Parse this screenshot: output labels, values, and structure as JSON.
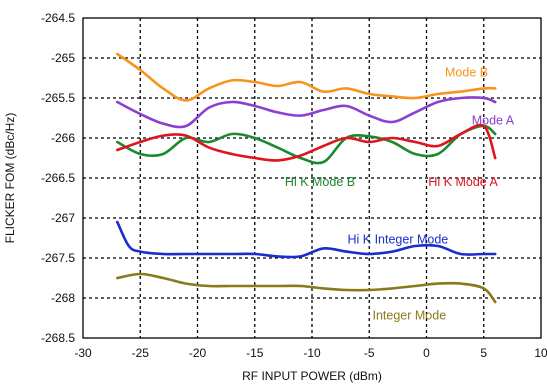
{
  "chart_data": {
    "type": "line",
    "title": "",
    "xlabel": "RF INPUT POWER (dBm)",
    "ylabel": "FLICKER FOM (dBc/Hz)",
    "xlim": [
      -30,
      10
    ],
    "ylim": [
      -268.5,
      -264.5
    ],
    "xticks": [
      -30,
      -25,
      -20,
      -15,
      -10,
      -5,
      0,
      5,
      10
    ],
    "yticks": [
      -264.5,
      -265,
      -265.5,
      -266,
      -266.5,
      -267,
      -267.5,
      -268,
      -268.5
    ],
    "grid": "dashed",
    "series": [
      {
        "name": "Mode B",
        "color": "#f7941d",
        "label_at": [
          3.5,
          -265.18
        ],
        "x": [
          -27,
          -25,
          -23,
          -21,
          -19,
          -17,
          -15,
          -13,
          -11,
          -9,
          -7,
          -5,
          -3,
          -1,
          1,
          3,
          5,
          6
        ],
        "y": [
          -264.95,
          -265.15,
          -265.38,
          -265.53,
          -265.38,
          -265.28,
          -265.3,
          -265.35,
          -265.3,
          -265.42,
          -265.38,
          -265.45,
          -265.48,
          -265.5,
          -265.45,
          -265.42,
          -265.38,
          -265.38
        ]
      },
      {
        "name": "Mode A",
        "color": "#8b3fd1",
        "label_at": [
          5.8,
          -265.78
        ],
        "x": [
          -27,
          -25,
          -23,
          -21,
          -19,
          -17,
          -15,
          -13,
          -11,
          -9,
          -7,
          -5,
          -3,
          -1,
          1,
          3,
          5,
          6
        ],
        "y": [
          -265.55,
          -265.7,
          -265.82,
          -265.85,
          -265.62,
          -265.55,
          -265.6,
          -265.68,
          -265.72,
          -265.65,
          -265.6,
          -265.72,
          -265.8,
          -265.68,
          -265.55,
          -265.5,
          -265.5,
          -265.55
        ]
      },
      {
        "name": "Hi K Mode B",
        "color": "#1a8a2e",
        "label_at": [
          -9.3,
          -266.55
        ],
        "x": [
          -27,
          -25,
          -23,
          -21,
          -19,
          -17,
          -15,
          -13,
          -11,
          -9,
          -7,
          -5,
          -3,
          -1,
          1,
          3,
          5,
          6
        ],
        "y": [
          -266.05,
          -266.2,
          -266.2,
          -266.0,
          -266.05,
          -265.95,
          -266.0,
          -266.12,
          -266.25,
          -266.3,
          -266.0,
          -265.98,
          -266.05,
          -266.2,
          -266.2,
          -265.95,
          -265.85,
          -265.95
        ]
      },
      {
        "name": "Hi K Mode A",
        "color": "#e0141e",
        "label_at": [
          3.2,
          -266.55
        ],
        "x": [
          -27,
          -25,
          -23,
          -21,
          -19,
          -17,
          -15,
          -13,
          -11,
          -9,
          -7,
          -5,
          -3,
          -1,
          1,
          3,
          5,
          6
        ],
        "y": [
          -266.15,
          -266.05,
          -265.97,
          -265.97,
          -266.12,
          -266.2,
          -266.25,
          -266.28,
          -266.22,
          -266.1,
          -266.0,
          -266.05,
          -266.0,
          -266.05,
          -266.1,
          -265.95,
          -265.85,
          -266.25
        ]
      },
      {
        "name": "Hi K Integer Mode",
        "color": "#1a2ecc",
        "label_at": [
          -2.5,
          -267.27
        ],
        "x": [
          -27,
          -26,
          -25,
          -23,
          -21,
          -19,
          -17,
          -15,
          -13,
          -11,
          -9,
          -7,
          -5,
          -3,
          -1,
          1,
          3,
          5,
          6
        ],
        "y": [
          -267.05,
          -267.35,
          -267.42,
          -267.45,
          -267.45,
          -267.45,
          -267.45,
          -267.45,
          -267.48,
          -267.48,
          -267.38,
          -267.42,
          -267.45,
          -267.42,
          -267.35,
          -267.35,
          -267.45,
          -267.45,
          -267.45
        ]
      },
      {
        "name": "Integer Mode",
        "color": "#8a7a1c",
        "label_at": [
          -1.5,
          -268.22
        ],
        "x": [
          -27,
          -25,
          -23,
          -21,
          -19,
          -17,
          -15,
          -13,
          -11,
          -9,
          -7,
          -5,
          -3,
          -1,
          1,
          3,
          5,
          6
        ],
        "y": [
          -267.75,
          -267.7,
          -267.75,
          -267.82,
          -267.85,
          -267.85,
          -267.85,
          -267.85,
          -267.85,
          -267.88,
          -267.9,
          -267.9,
          -267.88,
          -267.85,
          -267.82,
          -267.82,
          -267.88,
          -268.05
        ]
      }
    ]
  }
}
